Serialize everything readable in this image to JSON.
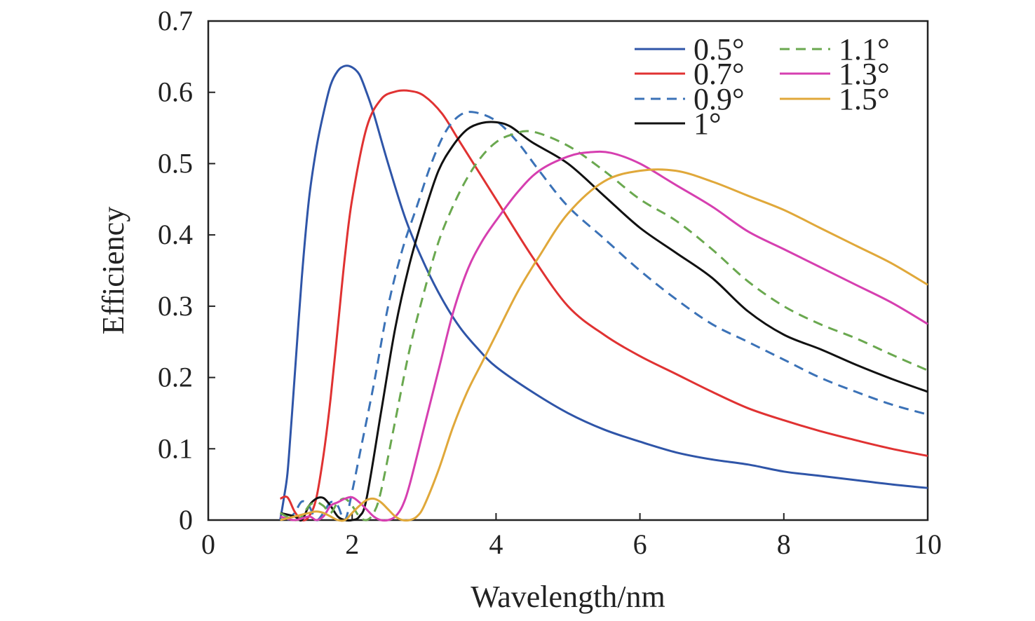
{
  "chart_data": {
    "type": "line",
    "title": "",
    "xlabel": "Wavelength/nm",
    "ylabel": "Efficiency",
    "xlim": [
      0,
      10
    ],
    "ylim": [
      0,
      0.7
    ],
    "xticks": [
      "0",
      "2",
      "4",
      "6",
      "8",
      "10"
    ],
    "yticks": [
      "0",
      "0.1",
      "0.2",
      "0.3",
      "0.4",
      "0.5",
      "0.6",
      "0.7"
    ],
    "grid": false,
    "legend_position": "top-right",
    "series": [
      {
        "name": "0.5°",
        "color": "#2f55a8",
        "dashed": false,
        "x": [
          1.0,
          1.05,
          1.1,
          1.15,
          1.2,
          1.3,
          1.4,
          1.5,
          1.6,
          1.7,
          1.8,
          1.9,
          2.0,
          2.1,
          2.2,
          2.3,
          2.5,
          2.75,
          3.0,
          3.25,
          3.5,
          3.75,
          4.0,
          4.5,
          5.0,
          5.5,
          6.0,
          6.5,
          7.0,
          7.5,
          8.0,
          8.5,
          9.0,
          9.5,
          10.0
        ],
        "y": [
          0.0,
          0.03,
          0.065,
          0.13,
          0.2,
          0.34,
          0.45,
          0.52,
          0.57,
          0.61,
          0.63,
          0.637,
          0.635,
          0.625,
          0.6,
          0.57,
          0.5,
          0.42,
          0.36,
          0.31,
          0.27,
          0.24,
          0.215,
          0.18,
          0.15,
          0.127,
          0.11,
          0.095,
          0.085,
          0.078,
          0.068,
          0.062,
          0.056,
          0.05,
          0.045
        ]
      },
      {
        "name": "0.7°",
        "color": "#e03232",
        "dashed": false,
        "x": [
          1.0,
          1.1,
          1.2,
          1.3,
          1.4,
          1.5,
          1.6,
          1.7,
          1.8,
          1.9,
          2.0,
          2.2,
          2.4,
          2.6,
          2.8,
          3.0,
          3.25,
          3.5,
          4.0,
          4.5,
          5.0,
          5.5,
          6.0,
          6.5,
          7.0,
          7.5,
          8.0,
          8.5,
          9.0,
          9.5,
          10.0
        ],
        "y": [
          0.03,
          0.032,
          0.012,
          0.0,
          0.005,
          0.03,
          0.09,
          0.17,
          0.27,
          0.37,
          0.45,
          0.55,
          0.59,
          0.601,
          0.602,
          0.595,
          0.57,
          0.53,
          0.45,
          0.37,
          0.3,
          0.26,
          0.23,
          0.205,
          0.18,
          0.157,
          0.14,
          0.125,
          0.112,
          0.1,
          0.09
        ]
      },
      {
        "name": "0.9°",
        "color": "#3b72b7",
        "dashed": true,
        "x": [
          1.1,
          1.2,
          1.3,
          1.4,
          1.5,
          1.6,
          1.7,
          1.8,
          1.9,
          2.0,
          2.1,
          2.3,
          2.5,
          2.7,
          2.9,
          3.1,
          3.3,
          3.5,
          3.7,
          4.0,
          4.3,
          4.6,
          5.0,
          5.5,
          6.0,
          6.5,
          7.0,
          7.5,
          8.0,
          8.5,
          9.0,
          9.5,
          10.0
        ],
        "y": [
          0.0,
          0.01,
          0.026,
          0.02,
          0.0,
          0.01,
          0.025,
          0.02,
          0.0,
          0.04,
          0.09,
          0.19,
          0.3,
          0.38,
          0.44,
          0.5,
          0.545,
          0.568,
          0.572,
          0.56,
          0.53,
          0.49,
          0.44,
          0.395,
          0.35,
          0.31,
          0.275,
          0.25,
          0.225,
          0.2,
          0.18,
          0.162,
          0.148
        ]
      },
      {
        "name": "1°",
        "color": "#111111",
        "dashed": false,
        "x": [
          1.0,
          1.2,
          1.3,
          1.4,
          1.5,
          1.6,
          1.7,
          1.8,
          1.9,
          2.0,
          2.1,
          2.2,
          2.4,
          2.6,
          2.8,
          3.0,
          3.2,
          3.4,
          3.6,
          3.8,
          4.0,
          4.2,
          4.5,
          5.0,
          5.5,
          6.0,
          6.5,
          7.0,
          7.5,
          8.0,
          8.5,
          9.0,
          9.5,
          10.0
        ],
        "y": [
          0.01,
          0.005,
          0.0,
          0.02,
          0.03,
          0.031,
          0.02,
          0.005,
          0.0,
          0.0,
          0.005,
          0.03,
          0.15,
          0.27,
          0.36,
          0.43,
          0.49,
          0.525,
          0.548,
          0.557,
          0.558,
          0.552,
          0.53,
          0.5,
          0.455,
          0.41,
          0.375,
          0.34,
          0.293,
          0.26,
          0.24,
          0.218,
          0.198,
          0.18
        ]
      },
      {
        "name": "1.1°",
        "color": "#6aa84f",
        "dashed": true,
        "x": [
          1.0,
          1.2,
          1.3,
          1.4,
          1.5,
          1.6,
          1.7,
          1.8,
          1.9,
          2.0,
          2.1,
          2.2,
          2.3,
          2.4,
          2.6,
          2.8,
          3.0,
          3.2,
          3.4,
          3.6,
          3.8,
          4.0,
          4.2,
          4.5,
          5.0,
          5.5,
          6.0,
          6.5,
          7.0,
          7.5,
          8.0,
          8.5,
          9.0,
          9.5,
          10.0
        ],
        "y": [
          0.01,
          0.0,
          0.005,
          0.02,
          0.025,
          0.02,
          0.01,
          0.025,
          0.03,
          0.02,
          0.005,
          0.0,
          0.01,
          0.04,
          0.14,
          0.24,
          0.32,
          0.39,
          0.44,
          0.48,
          0.51,
          0.53,
          0.54,
          0.545,
          0.525,
          0.49,
          0.45,
          0.42,
          0.38,
          0.335,
          0.3,
          0.275,
          0.255,
          0.232,
          0.21
        ]
      },
      {
        "name": "1.3°",
        "color": "#d63fb0",
        "dashed": false,
        "x": [
          1.0,
          1.2,
          1.4,
          1.5,
          1.6,
          1.7,
          1.8,
          1.9,
          2.0,
          2.1,
          2.2,
          2.3,
          2.4,
          2.5,
          2.6,
          2.7,
          2.8,
          3.0,
          3.2,
          3.4,
          3.6,
          3.8,
          4.0,
          4.3,
          4.6,
          5.0,
          5.3,
          5.6,
          6.0,
          6.5,
          7.0,
          7.5,
          8.0,
          8.5,
          9.0,
          9.5,
          10.0
        ],
        "y": [
          0.005,
          0.0,
          0.005,
          0.0,
          0.005,
          0.02,
          0.025,
          0.03,
          0.032,
          0.025,
          0.015,
          0.005,
          0.0,
          0.0,
          0.005,
          0.02,
          0.05,
          0.13,
          0.21,
          0.29,
          0.35,
          0.39,
          0.42,
          0.46,
          0.49,
          0.51,
          0.516,
          0.515,
          0.5,
          0.47,
          0.44,
          0.405,
          0.38,
          0.355,
          0.33,
          0.305,
          0.275
        ]
      },
      {
        "name": "1.5°",
        "color": "#e0a83a",
        "dashed": false,
        "x": [
          1.0,
          1.2,
          1.4,
          1.5,
          1.6,
          1.7,
          1.8,
          1.9,
          2.0,
          2.1,
          2.2,
          2.3,
          2.4,
          2.5,
          2.6,
          2.7,
          2.8,
          2.9,
          3.0,
          3.2,
          3.4,
          3.6,
          3.8,
          4.0,
          4.3,
          4.6,
          5.0,
          5.5,
          6.0,
          6.5,
          7.0,
          7.5,
          8.0,
          8.5,
          9.0,
          9.5,
          10.0
        ],
        "y": [
          0.0,
          0.005,
          0.01,
          0.012,
          0.01,
          0.005,
          0.0,
          0.0,
          0.01,
          0.02,
          0.028,
          0.03,
          0.025,
          0.015,
          0.005,
          0.0,
          0.0,
          0.005,
          0.02,
          0.07,
          0.13,
          0.18,
          0.22,
          0.26,
          0.32,
          0.37,
          0.43,
          0.475,
          0.49,
          0.49,
          0.475,
          0.455,
          0.435,
          0.41,
          0.385,
          0.36,
          0.33
        ]
      }
    ]
  }
}
